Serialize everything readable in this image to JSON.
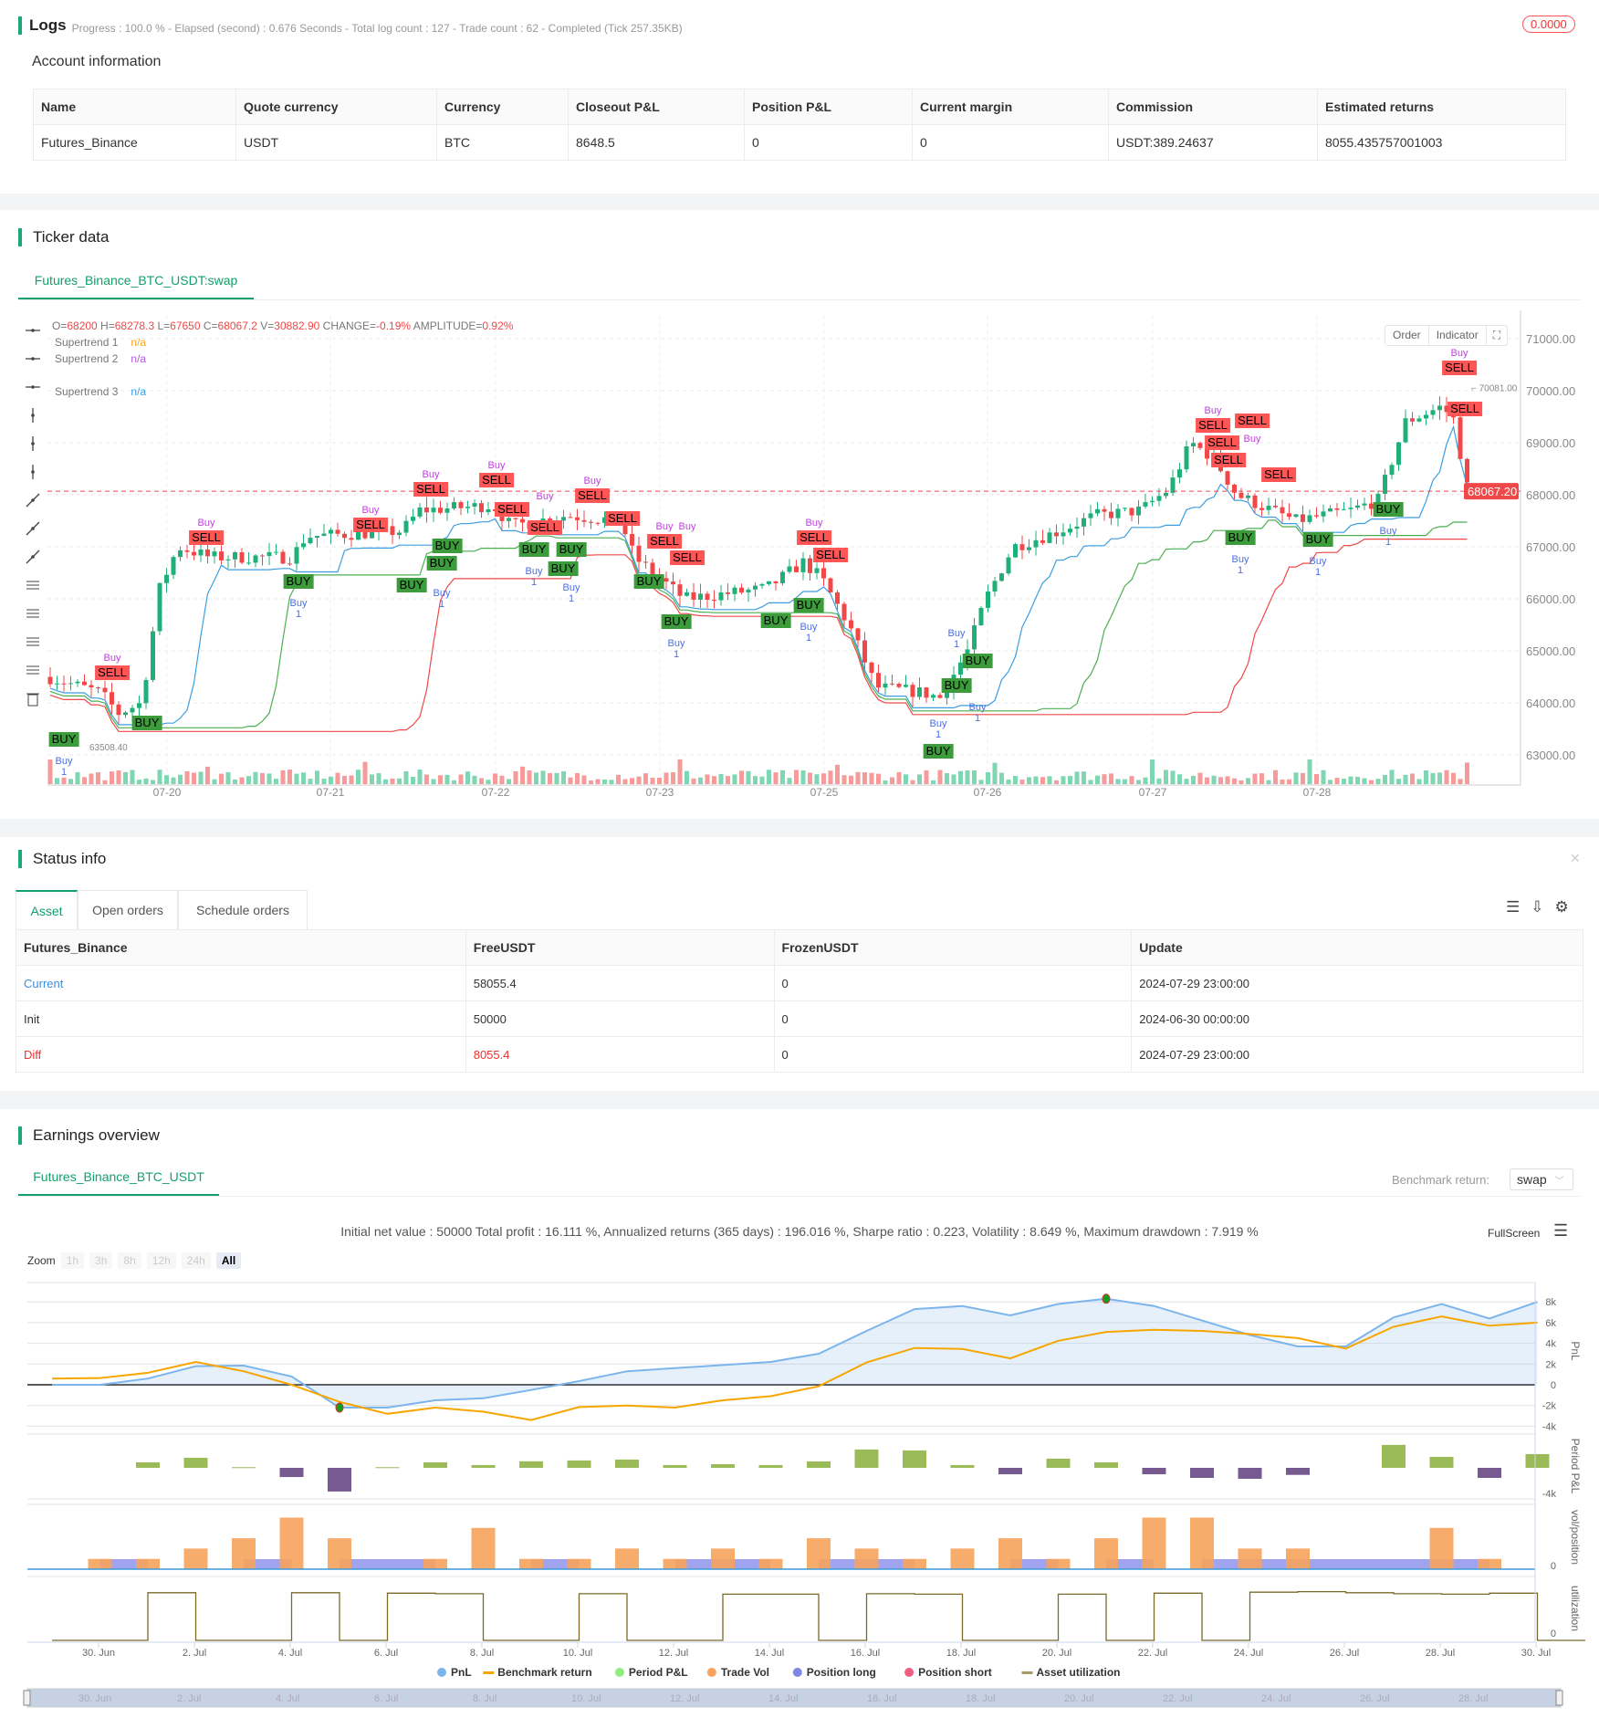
{
  "logs": {
    "title": "Logs",
    "progress": "Progress : 100.0 % - Elapsed (second) : 0.676  Seconds - Total log count : 127 - Trade count : 62 - Completed (Tick 257.35KB)",
    "badge": "0.0000"
  },
  "account": {
    "title": "Account information",
    "headers": [
      "Name",
      "Quote currency",
      "Currency",
      "Closeout P&L",
      "Position P&L",
      "Current margin",
      "Commission",
      "Estimated returns"
    ],
    "row": [
      "Futures_Binance",
      "USDT",
      "BTC",
      "8648.5",
      "0",
      "0",
      "USDT:389.24637",
      "8055.435757001003"
    ]
  },
  "ticker": {
    "title": "Ticker data",
    "tab": "Futures_Binance_BTC_USDT:swap",
    "ohlc": {
      "o_label": "O=",
      "o": "68200",
      "h_label": " H=",
      "h": "68278.3",
      "l_label": " L=",
      "l": "67650",
      "c_label": " C=",
      "c": "68067.2",
      "v_label": " V=",
      "v": "30882.90",
      "chg_label": " CHANGE=",
      "chg": "-0.19%",
      "amp_label": " AMPLITUDE=",
      "amp": "0.92%"
    },
    "legend": [
      {
        "name": "Supertrend 1",
        "value": "n/a",
        "color": "#f5a623"
      },
      {
        "name": "Supertrend 2",
        "value": "n/a",
        "color": "#b05ad8"
      },
      {
        "name": "Supertrend 3",
        "value": "n/a",
        "color": "#3b9de0"
      }
    ],
    "buttons": {
      "order": "Order",
      "indicator": "Indicator"
    },
    "price_ticks": [
      "71000.00",
      "70000.00",
      "69000.00",
      "68000.00",
      "67000.00",
      "66000.00",
      "65000.00",
      "64000.00",
      "63000.00"
    ],
    "date_ticks": [
      "07-20",
      "07-21",
      "07-22",
      "07-23",
      "07-25",
      "07-26",
      "07-27",
      "07-28"
    ],
    "current_price": "68067.20",
    "high_marker": "70081.00",
    "low_marker": "63508.40",
    "signal_text": {
      "sell": "SELL",
      "buy": "BUY",
      "buy_small": "Buy",
      "qty": "1"
    },
    "colors": {
      "up": "#1fb07a",
      "down": "#f04848",
      "st_fast": "#3b9de0",
      "st_mid": "#4caf50",
      "st_slow": "#f04848"
    }
  },
  "status": {
    "title": "Status info",
    "tabs": [
      "Asset",
      "Open orders",
      "Schedule orders"
    ],
    "headers": [
      "Futures_Binance",
      "FreeUSDT",
      "FrozenUSDT",
      "Update"
    ],
    "rows": [
      [
        "Current",
        "58055.4",
        "0",
        "2024-07-29 23:00:00"
      ],
      [
        "Init",
        "50000",
        "0",
        "2024-06-30 00:00:00"
      ],
      [
        "Diff",
        "8055.4",
        "0",
        "2024-07-29 23:00:00"
      ]
    ]
  },
  "earnings": {
    "title": "Earnings overview",
    "tab": "Futures_Binance_BTC_USDT",
    "benchmark_label": "Benchmark return:",
    "benchmark_value": "swap",
    "summary": "Initial net value : 50000 Total profit : 16.111 %, Annualized returns (365 days) : 196.016 %, Sharpe ratio : 0.223, Volatility : 8.649 %, Maximum drawdown : 7.919 %",
    "fullscreen": "FullScreen",
    "zoom_label": "Zoom",
    "zoom_buttons": [
      "1h",
      "3h",
      "8h",
      "12h",
      "24h",
      "All"
    ],
    "zoom_active": "All",
    "axis_titles": [
      "PnL",
      "Period P&L",
      "vol/position",
      "utilization"
    ],
    "pnl_ticks": [
      "8k",
      "6k",
      "4k",
      "2k",
      "0",
      "-2k",
      "-4k"
    ],
    "period_tick": "-4k",
    "vol_tick": "0",
    "util_tick": "0",
    "x_ticks": [
      "30. Jun",
      "2. Jul",
      "4. Jul",
      "6. Jul",
      "8. Jul",
      "10. Jul",
      "12. Jul",
      "14. Jul",
      "16. Jul",
      "18. Jul",
      "20. Jul",
      "22. Jul",
      "24. Jul",
      "26. Jul",
      "28. Jul",
      "30. Jul"
    ],
    "nav_ticks": [
      "30. Jun",
      "2. Jul",
      "4. Jul",
      "6. Jul",
      "8. Jul",
      "10. Jul",
      "12. Jul",
      "14. Jul",
      "16. Jul",
      "18. Jul",
      "20. Jul",
      "22. Jul",
      "24. Jul",
      "26. Jul",
      "28. Jul"
    ],
    "legend": [
      {
        "name": "PnL",
        "color": "#7cb5ec"
      },
      {
        "name": "Benchmark return",
        "color": "#f7a600"
      },
      {
        "name": "Period P&L",
        "color": "#90ed7d"
      },
      {
        "name": "Trade Vol",
        "color": "#f7a35c"
      },
      {
        "name": "Position long",
        "color": "#8085e9"
      },
      {
        "name": "Position short",
        "color": "#f15c80"
      },
      {
        "name": "Asset utilization",
        "color": "#a69a6a"
      }
    ],
    "chart_data": {
      "type": "line",
      "x": [
        "06-29",
        "06-30",
        "07-01",
        "07-02",
        "07-03",
        "07-04",
        "07-05",
        "07-06",
        "07-07",
        "07-08",
        "07-09",
        "07-10",
        "07-11",
        "07-12",
        "07-13",
        "07-14",
        "07-15",
        "07-16",
        "07-17",
        "07-18",
        "07-19",
        "07-20",
        "07-21",
        "07-22",
        "07-23",
        "07-24",
        "07-25",
        "07-26",
        "07-27",
        "07-28",
        "07-29",
        "07-30"
      ],
      "pnl": [
        0,
        0,
        600,
        1800,
        1850,
        800,
        -2200,
        -2200,
        -1500,
        -1300,
        -500,
        350,
        1300,
        1600,
        1900,
        2200,
        3000,
        5200,
        7300,
        7600,
        6700,
        7800,
        8300,
        7600,
        6200,
        4800,
        3700,
        3700,
        6500,
        7800,
        6400,
        8000
      ],
      "benchmark": [
        600,
        650,
        1150,
        2200,
        1300,
        0,
        -1650,
        -2800,
        -2200,
        -2600,
        -3400,
        -2150,
        -2000,
        -2200,
        -1500,
        -1100,
        -150,
        2150,
        3550,
        3450,
        2550,
        4250,
        5100,
        5300,
        5200,
        4900,
        4500,
        3500,
        5600,
        6600,
        5700,
        6000
      ],
      "period_pnl": [
        0,
        0,
        840,
        1530,
        100,
        -1400,
        -3600,
        100,
        840,
        420,
        1000,
        1120,
        1260,
        420,
        560,
        420,
        980,
        2790,
        2650,
        420,
        -980,
        1400,
        840,
        -980,
        -1530,
        -1670,
        -1070,
        0,
        3490,
        1670,
        -1530,
        2090
      ],
      "trade_vol": [
        0,
        1,
        1,
        2,
        3,
        5,
        3,
        0,
        1,
        4,
        1,
        1,
        2,
        1,
        2,
        1,
        3,
        2,
        1,
        2,
        3,
        1,
        3,
        5,
        5,
        2,
        2,
        0,
        0,
        4,
        1,
        0
      ],
      "position_long": [
        0,
        1,
        0,
        0,
        1,
        0,
        1,
        1,
        0,
        0,
        1,
        0,
        0,
        1,
        1,
        0,
        1,
        1,
        0,
        0,
        1,
        0,
        1,
        0,
        1,
        1,
        1,
        1,
        1,
        1,
        0,
        0
      ],
      "utilization": [
        0,
        0,
        0.95,
        0,
        0,
        0.95,
        0,
        0.94,
        0.93,
        0,
        0,
        0.93,
        0,
        0,
        0.92,
        0.92,
        0,
        0.93,
        0.92,
        0,
        0,
        0.92,
        0,
        0.94,
        0,
        0.96,
        0.97,
        0.95,
        0.93,
        0.92,
        0.94,
        0
      ],
      "ylim_pnl": [
        -4000,
        8000
      ],
      "max_drawdown_markers": [
        "07-05",
        "07-21"
      ]
    }
  }
}
